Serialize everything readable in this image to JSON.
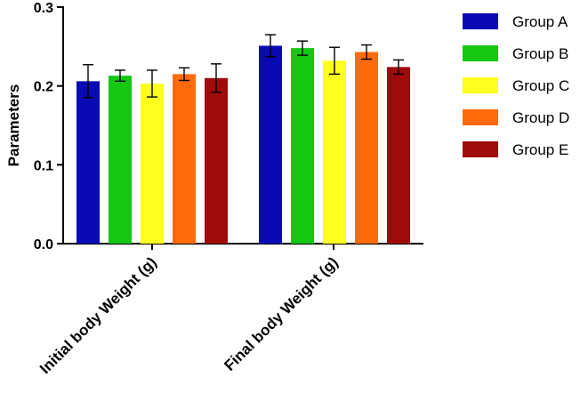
{
  "chart_data": {
    "type": "bar",
    "title": "",
    "xlabel": "",
    "ylabel": "Parameters",
    "ylim": [
      0,
      0.3
    ],
    "yticks": [
      "0.0",
      "0.1",
      "0.2",
      "0.3"
    ],
    "categories": [
      "Initial body Weight (g)",
      "Final body Weight (g)"
    ],
    "legend_position": "right",
    "grid": false,
    "series": [
      {
        "name": "Group A",
        "color": "#0a0ab4",
        "values": [
          0.206,
          0.251
        ],
        "errors": [
          0.021,
          0.014
        ]
      },
      {
        "name": "Group B",
        "color": "#14c814",
        "values": [
          0.213,
          0.248
        ],
        "errors": [
          0.007,
          0.009
        ]
      },
      {
        "name": "Group C",
        "color": "#ffff1e",
        "values": [
          0.203,
          0.232
        ],
        "errors": [
          0.017,
          0.017
        ]
      },
      {
        "name": "Group D",
        "color": "#ff6a0a",
        "values": [
          0.215,
          0.243
        ],
        "errors": [
          0.008,
          0.009
        ]
      },
      {
        "name": "Group E",
        "color": "#a00a0a",
        "values": [
          0.21,
          0.224
        ],
        "errors": [
          0.018,
          0.009
        ]
      }
    ]
  }
}
